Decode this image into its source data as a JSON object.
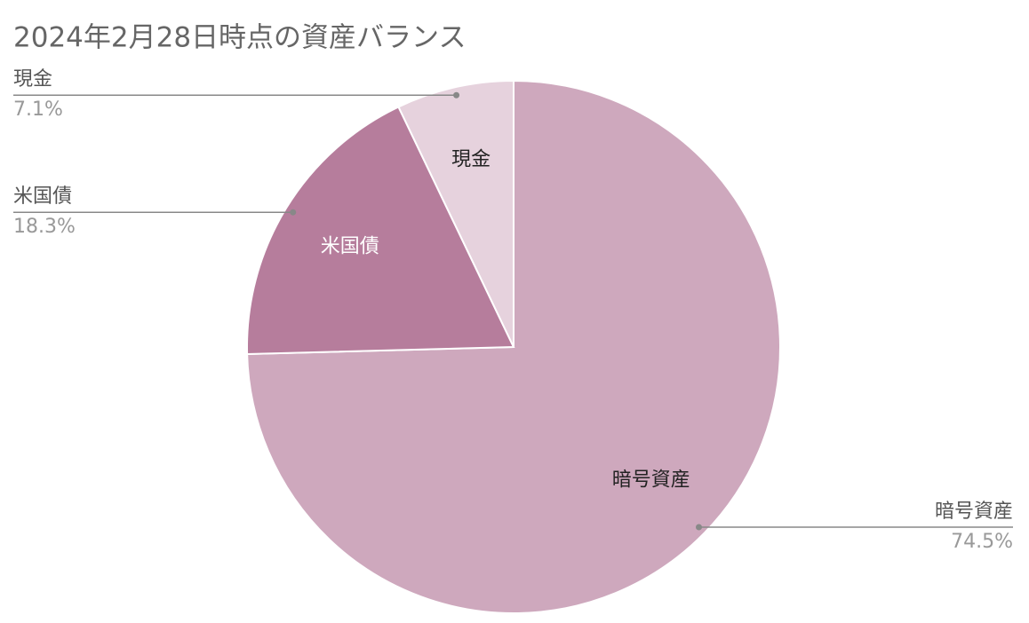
{
  "chart_data": {
    "type": "pie",
    "title": "2024年2月28日時点の資産バランス",
    "categories": [
      "暗号資産",
      "米国債",
      "現金"
    ],
    "values": [
      74.5,
      18.3,
      7.1
    ],
    "value_labels": [
      "74.5%",
      "18.3%",
      "7.1%"
    ],
    "colors": [
      "#cea8bd",
      "#b67d9c",
      "#e6d2dd"
    ]
  }
}
